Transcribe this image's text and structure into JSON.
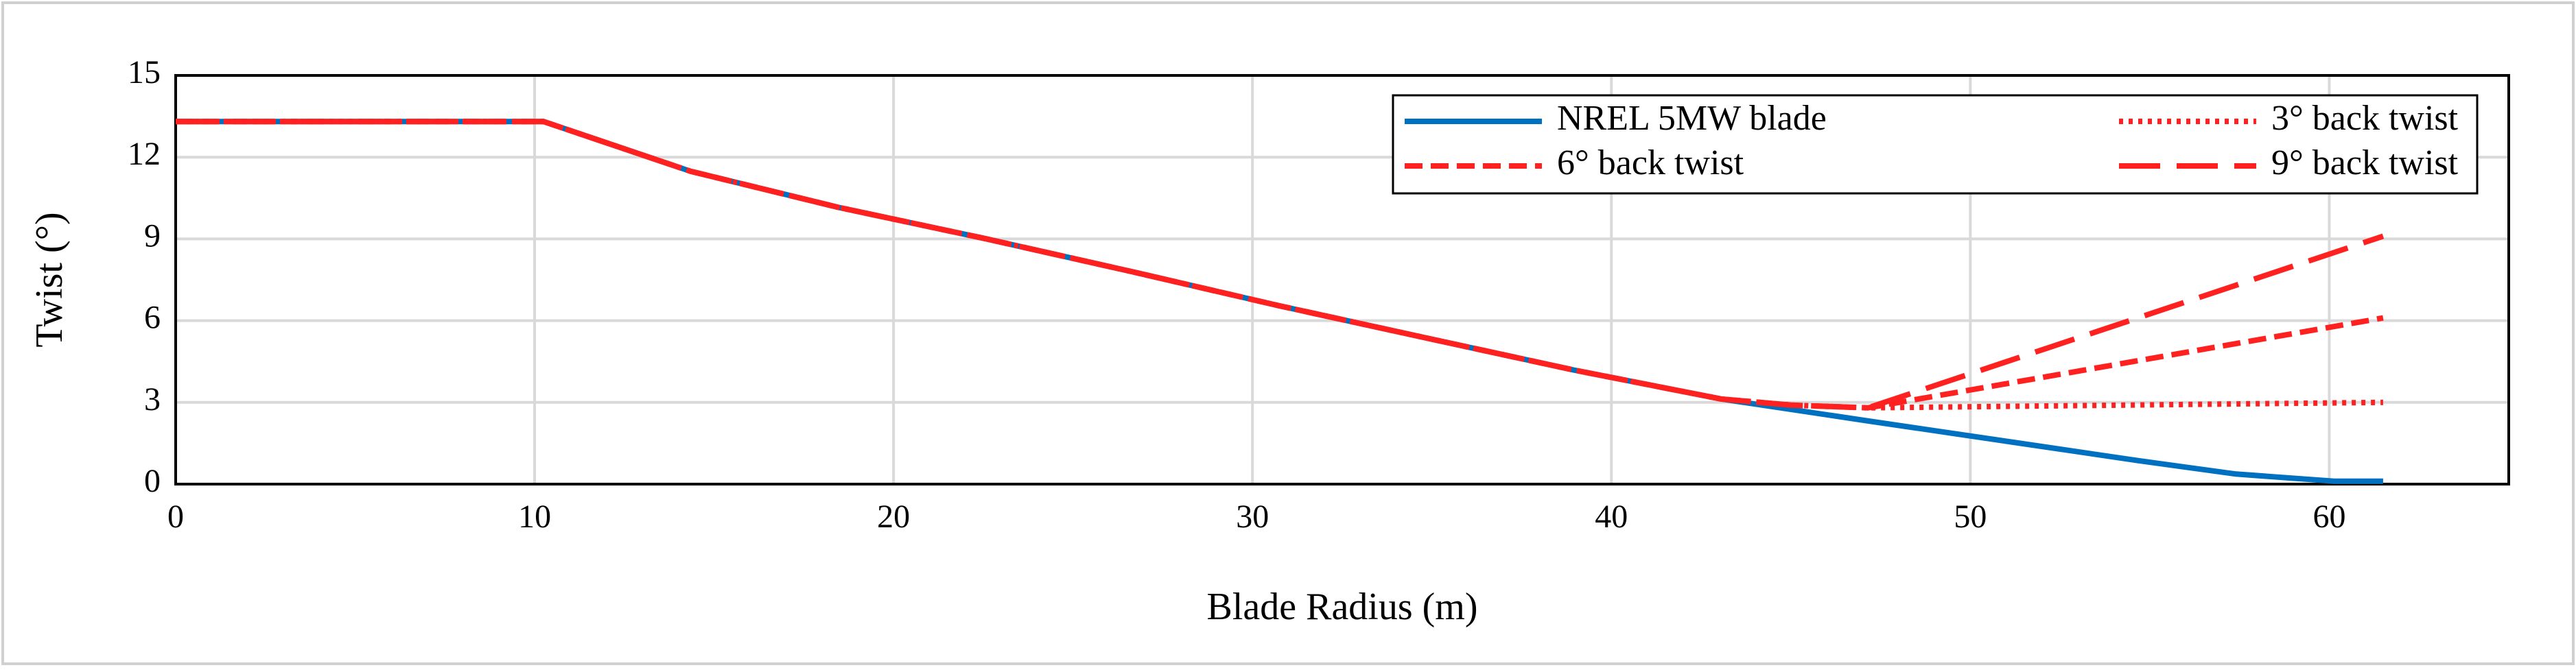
{
  "chart_data": {
    "type": "line",
    "x_label": "Blade Radius (m)",
    "y_label": "Twist (°)",
    "xlim": [
      0,
      65
    ],
    "xticks": [
      0,
      10,
      20,
      30,
      40,
      50,
      60
    ],
    "ylim": [
      0,
      15
    ],
    "yticks": [
      0,
      3,
      6,
      9,
      12,
      15
    ],
    "grid": true,
    "legend": "upper right",
    "series": [
      {
        "name": "NREL 5MW blade",
        "color": "#0070c0",
        "dash": "solid",
        "x": [
          0,
          10.25,
          14.35,
          18.45,
          22.55,
          26.65,
          30.75,
          34.85,
          38.95,
          43.05,
          47.15,
          51.25,
          54.67,
          57.4,
          60.13,
          61.5
        ],
        "values": [
          13.308,
          13.308,
          11.48,
          10.162,
          9.011,
          7.795,
          6.544,
          5.361,
          4.188,
          3.125,
          2.319,
          1.526,
          0.863,
          0.37,
          0.106,
          0.106
        ]
      },
      {
        "name": "3° back twist",
        "color": "#ff2020",
        "dash": "dotted",
        "x": [
          0,
          10.25,
          14.35,
          18.45,
          22.55,
          26.65,
          30.75,
          34.85,
          38.95,
          43.05,
          45,
          47.15,
          61.5
        ],
        "values": [
          13.308,
          13.308,
          11.48,
          10.162,
          9.011,
          7.795,
          6.544,
          5.361,
          4.188,
          3.125,
          2.9,
          2.8,
          3.0
        ]
      },
      {
        "name": "6° back twist",
        "color": "#ff2020",
        "dash": "dashed",
        "x": [
          0,
          10.25,
          14.35,
          18.45,
          22.55,
          26.65,
          30.75,
          34.85,
          38.95,
          43.05,
          45,
          47.15,
          61.5
        ],
        "values": [
          13.308,
          13.308,
          11.48,
          10.162,
          9.011,
          7.795,
          6.544,
          5.361,
          4.188,
          3.125,
          2.9,
          2.8,
          6.1
        ]
      },
      {
        "name": "9° back twist",
        "color": "#ff2020",
        "dash": "longdash",
        "x": [
          0,
          10.25,
          14.35,
          18.45,
          22.55,
          26.65,
          30.75,
          34.85,
          38.95,
          43.05,
          45,
          47.15,
          61.5
        ],
        "values": [
          13.308,
          13.308,
          11.48,
          10.162,
          9.011,
          7.795,
          6.544,
          5.361,
          4.188,
          3.125,
          2.9,
          2.8,
          9.1
        ]
      }
    ]
  }
}
